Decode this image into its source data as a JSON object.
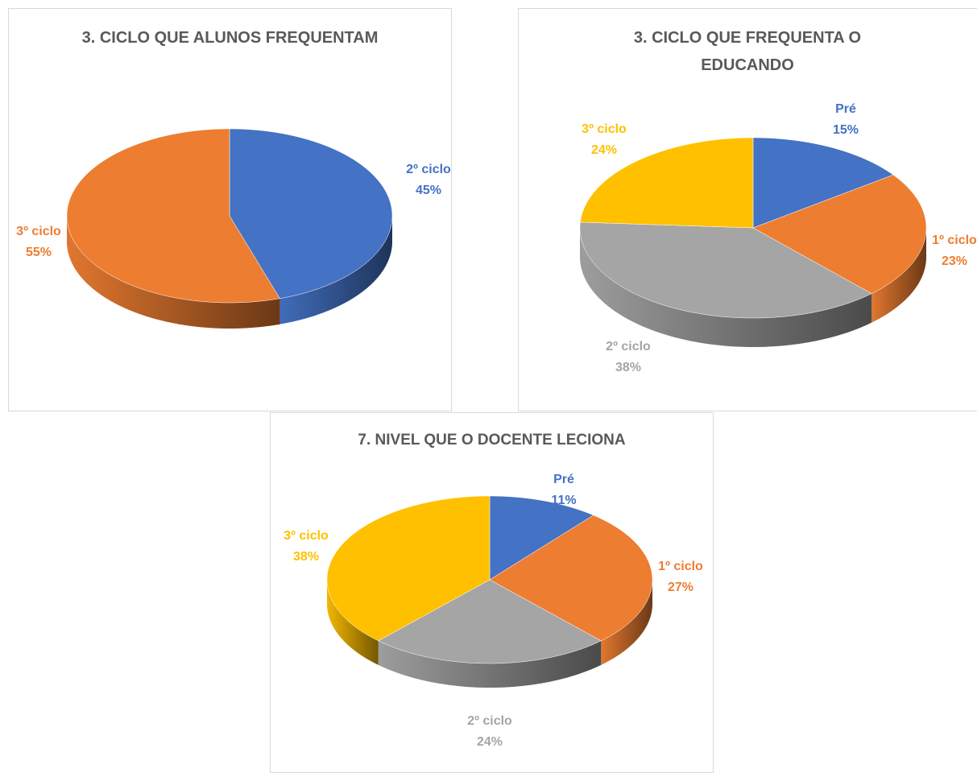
{
  "chart_data": [
    {
      "type": "pie",
      "title": "3. CICLO QUE ALUNOS FREQUENTAM",
      "categories": [
        "2º ciclo",
        "3º ciclo"
      ],
      "values": [
        45,
        55
      ],
      "value_labels": [
        "45%",
        "55%"
      ],
      "colors": [
        "#4472c4",
        "#ed7d31"
      ]
    },
    {
      "type": "pie",
      "title": "3. CICLO  QUE FREQUENTA O EDUCANDO",
      "categories": [
        "Pré",
        "1º ciclo",
        "2º ciclo",
        "3º ciclo"
      ],
      "values": [
        15,
        23,
        38,
        24
      ],
      "value_labels": [
        "15%",
        "23%",
        "38%",
        "24%"
      ],
      "colors": [
        "#4472c4",
        "#ed7d31",
        "#a5a5a5",
        "#ffc000"
      ]
    },
    {
      "type": "pie",
      "title": "7. NIVEL QUE O DOCENTE LECIONA",
      "categories": [
        "Pré",
        "1º ciclo",
        "2º ciclo",
        "3º ciclo"
      ],
      "values": [
        11,
        27,
        24,
        38
      ],
      "value_labels": [
        "11%",
        "27%",
        "24%",
        "38%"
      ],
      "colors": [
        "#4472c4",
        "#ed7d31",
        "#a5a5a5",
        "#ffc000"
      ]
    }
  ]
}
